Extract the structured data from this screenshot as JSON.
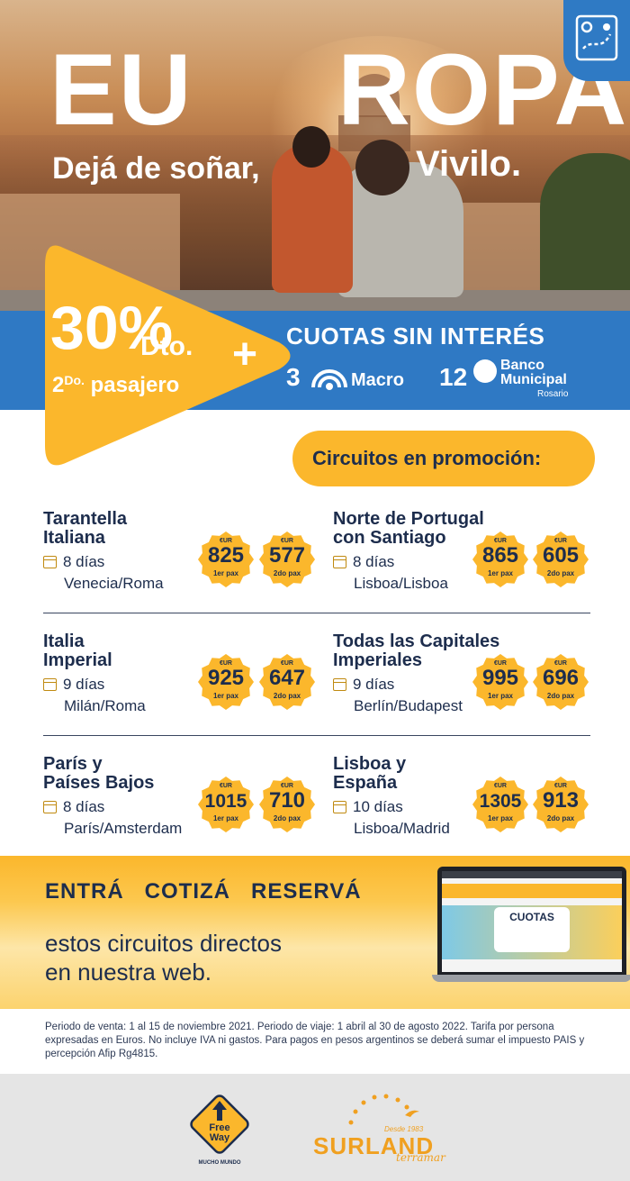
{
  "hero": {
    "title_part1": "EU",
    "title_part2": "ROPA",
    "subtitle_left": "Dejá de soñar,",
    "subtitle_right": "Vivilo."
  },
  "promo": {
    "percent": "30%",
    "dto": "Dto.",
    "pasajero_num": "2",
    "pasajero_sup": "Do.",
    "pasajero_text": "pasajero",
    "plus": "+",
    "cuotas_title": "CUOTAS SIN INTERÉS",
    "macro_cuotas": "3",
    "macro_name": "Macro",
    "bm_cuotas": "12",
    "bm_name_line1": "Banco",
    "bm_name_line2": "Municipal",
    "bm_name_line3": "Rosario"
  },
  "circuitos_label": "Circuitos en promoción:",
  "circuits": [
    {
      "title_l1": "Tarantella",
      "title_l2": "Italiana",
      "days": "8 días",
      "route": "Venecia/Roma",
      "price1": "825",
      "price2": "577"
    },
    {
      "title_l1": "Norte de Portugal",
      "title_l2": "con Santiago",
      "days": "8 días",
      "route": "Lisboa/Lisboa",
      "price1": "865",
      "price2": "605"
    },
    {
      "title_l1": "Italia",
      "title_l2": "Imperial",
      "days": "9 días",
      "route": "Milán/Roma",
      "price1": "925",
      "price2": "647"
    },
    {
      "title_l1": "Todas las Capitales",
      "title_l2": "Imperiales",
      "days": "9 días",
      "route": "Berlín/Budapest",
      "price1": "995",
      "price2": "696"
    },
    {
      "title_l1": "París y",
      "title_l2": "Países Bajos",
      "days": "8 días",
      "route": "París/Amsterdam",
      "price1": "1015",
      "price2": "710"
    },
    {
      "title_l1": "Lisboa y",
      "title_l2": "España",
      "days": "10 días",
      "route": "Lisboa/Madrid",
      "price1": "1305",
      "price2": "913"
    }
  ],
  "price_labels": {
    "eur": "€UR",
    "pax1": "1er pax",
    "pax2": "2do pax"
  },
  "cta": {
    "words": "ENTRÁ   COTIZÁ   RESERVÁ",
    "line1": "estos circuitos directos",
    "line2": "en nuestra web.",
    "laptop_banner": "CUOTAS"
  },
  "legal": "Periodo de venta: 1 al 15 de noviembre 2021. Periodo de viaje: 1 abril al 30 de agosto 2022. Tarifa por persona expresadas en Euros. No incluye IVA ni gastos. Para pagos en pesos argentinos se deberá sumar el impuesto PAIS y percepción Afip Rg4815.",
  "footer": {
    "freeway_line1": "Free",
    "freeway_line2": "Way",
    "freeway_tag": "MUCHO MUNDO",
    "surland_desde": "Desde 1983",
    "surland_name": "SURLAND",
    "surland_sub": "terramar"
  },
  "colors": {
    "blue": "#2f79c4",
    "yellow": "#fbb72c",
    "navy": "#1d2d4d"
  },
  "icons": [
    "map-icon",
    "calendar-icon",
    "macro-logo-icon",
    "banco-municipal-logo-icon",
    "freeway-logo",
    "surland-logo"
  ]
}
